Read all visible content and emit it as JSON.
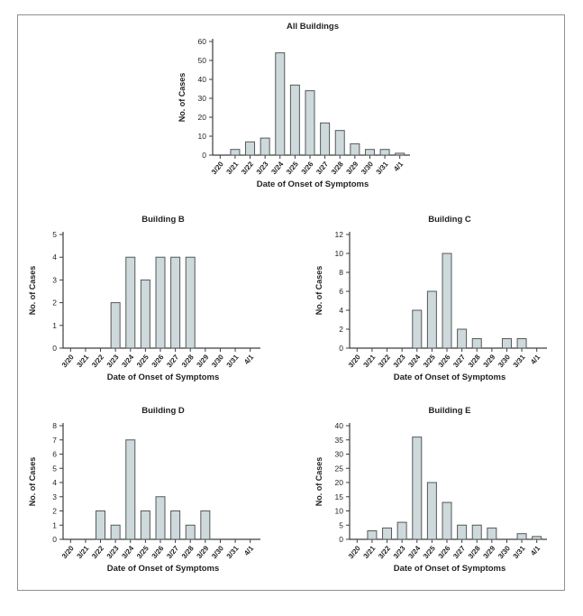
{
  "figure": {
    "x_axis_label": "Date of Onset of Symptoms",
    "y_axis_label": "No. of Cases"
  },
  "styles": {
    "bar_fill": "#cdd9db",
    "bar_stroke": "#55585a",
    "axis_color": "#3e3e40",
    "text_color": "#231f20",
    "frame_border": "#8e9092"
  },
  "chart_data": [
    {
      "type": "bar",
      "title": "All Buildings",
      "xlabel": "Date of Onset of Symptoms",
      "ylabel": "No. of Cases",
      "categories": [
        "3/20",
        "3/21",
        "3/22",
        "3/23",
        "3/24",
        "3/25",
        "3/26",
        "3/27",
        "3/28",
        "3/29",
        "3/30",
        "3/31",
        "4/1"
      ],
      "values": [
        0,
        3,
        7,
        9,
        54,
        37,
        34,
        17,
        13,
        6,
        3,
        3,
        1
      ],
      "ylim": [
        0,
        60
      ],
      "ytick_step": 10,
      "grid": false,
      "legend": false
    },
    {
      "type": "bar",
      "title": "Building B",
      "xlabel": "Date of Onset of Symptoms",
      "ylabel": "No. of Cases",
      "categories": [
        "3/20",
        "3/21",
        "3/22",
        "3/23",
        "3/24",
        "3/25",
        "3/26",
        "3/27",
        "3/28",
        "3/29",
        "3/30",
        "3/31",
        "4/1"
      ],
      "values": [
        0,
        0,
        0,
        2,
        4,
        3,
        4,
        4,
        4,
        0,
        0,
        0,
        0
      ],
      "ylim": [
        0,
        5
      ],
      "ytick_step": 1,
      "grid": false,
      "legend": false
    },
    {
      "type": "bar",
      "title": "Building C",
      "xlabel": "Date of Onset of Symptoms",
      "ylabel": "No. of Cases",
      "categories": [
        "3/20",
        "3/21",
        "3/22",
        "3/23",
        "3/24",
        "3/25",
        "3/26",
        "3/27",
        "3/28",
        "3/29",
        "3/30",
        "3/31",
        "4/1"
      ],
      "values": [
        0,
        0,
        0,
        0,
        4,
        6,
        10,
        2,
        1,
        0,
        1,
        1,
        0
      ],
      "ylim": [
        0,
        12
      ],
      "ytick_step": 2,
      "grid": false,
      "legend": false
    },
    {
      "type": "bar",
      "title": "Building D",
      "xlabel": "Date of Onset of Symptoms",
      "ylabel": "No. of Cases",
      "categories": [
        "3/20",
        "3/21",
        "3/22",
        "3/23",
        "3/24",
        "3/25",
        "3/26",
        "3/27",
        "3/28",
        "3/29",
        "3/30",
        "3/31",
        "4/1"
      ],
      "values": [
        0,
        0,
        2,
        1,
        7,
        2,
        3,
        2,
        1,
        2,
        0,
        0,
        0
      ],
      "ylim": [
        0,
        8
      ],
      "ytick_step": 1,
      "grid": false,
      "legend": false
    },
    {
      "type": "bar",
      "title": "Building E",
      "xlabel": "Date of Onset of Symptoms",
      "ylabel": "No. of Cases",
      "categories": [
        "3/20",
        "3/21",
        "3/22",
        "3/23",
        "3/24",
        "3/25",
        "3/26",
        "3/27",
        "3/28",
        "3/29",
        "3/30",
        "3/31",
        "4/1"
      ],
      "values": [
        0,
        3,
        4,
        6,
        36,
        20,
        13,
        5,
        5,
        4,
        0,
        2,
        1
      ],
      "ylim": [
        0,
        40
      ],
      "ytick_step": 5,
      "grid": false,
      "legend": false
    }
  ]
}
